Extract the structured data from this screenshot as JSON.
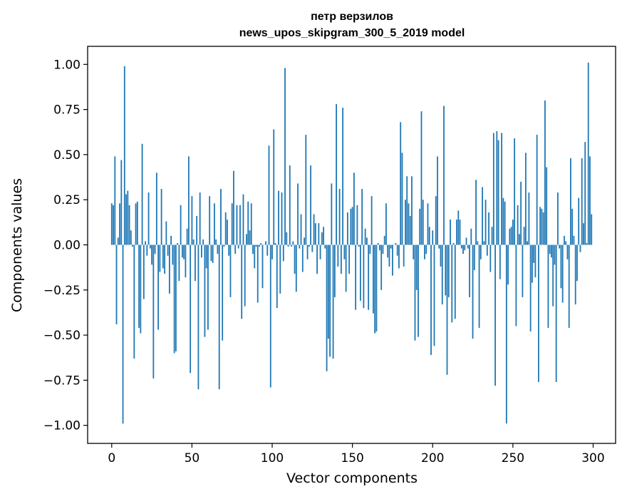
{
  "chart_data": {
    "type": "bar",
    "title": "петр верзилов",
    "subtitle": "news_upos_skipgram_300_5_2019 model",
    "xlabel": "Vector components",
    "ylabel": "Components values",
    "xlim": [
      -15,
      314
    ],
    "ylim": [
      -1.1,
      1.1
    ],
    "xticks": [
      0,
      50,
      100,
      150,
      200,
      250,
      300
    ],
    "xtick_labels": [
      "0",
      "50",
      "100",
      "150",
      "200",
      "250",
      "300"
    ],
    "yticks": [
      1.0,
      0.75,
      0.5,
      0.25,
      0.0,
      -0.25,
      -0.5,
      -0.75,
      -1.0
    ],
    "ytick_labels": [
      "1.00",
      "0.75",
      "0.50",
      "0.25",
      "0.00",
      "−0.25",
      "−0.50",
      "−0.75",
      "−1.00"
    ],
    "grid": false,
    "bar_color": "#1f77b4",
    "x": "indices 0-299",
    "values": [
      0.23,
      0.22,
      0.49,
      -0.44,
      0.04,
      0.23,
      0.47,
      -0.99,
      0.99,
      0.28,
      0.3,
      0.22,
      0.08,
      -0.01,
      -0.63,
      0.23,
      0.24,
      -0.46,
      -0.49,
      0.56,
      -0.3,
      0.02,
      -0.06,
      0.29,
      -0.02,
      -0.11,
      -0.74,
      -0.05,
      0.4,
      -0.47,
      -0.15,
      0.31,
      -0.13,
      -0.16,
      0.13,
      -0.06,
      -0.27,
      0.05,
      -0.11,
      -0.6,
      -0.59,
      0.01,
      -0.2,
      0.22,
      -0.07,
      -0.08,
      -0.18,
      0.09,
      0.49,
      -0.71,
      0.27,
      0.03,
      -0.2,
      0.16,
      -0.8,
      0.29,
      -0.07,
      0.03,
      -0.51,
      -0.13,
      -0.47,
      0.27,
      -0.09,
      -0.1,
      0.23,
      0.03,
      -0.05,
      -0.8,
      0.31,
      -0.53,
      -0.01,
      0.18,
      0.14,
      -0.06,
      -0.29,
      0.23,
      0.41,
      -0.05,
      0.22,
      -0.02,
      0.22,
      -0.41,
      0.28,
      -0.34,
      0.06,
      0.24,
      0.08,
      0.23,
      -0.05,
      -0.13,
      -0.01,
      -0.32,
      -0.01,
      0.01,
      -0.24,
      0.0,
      0.02,
      -0.06,
      0.55,
      -0.79,
      -0.08,
      0.64,
      0.01,
      -0.35,
      0.3,
      -0.27,
      0.29,
      -0.09,
      0.98,
      0.07,
      -0.01,
      0.44,
      -0.01,
      0.02,
      -0.16,
      -0.26,
      0.34,
      -0.02,
      0.17,
      -0.15,
      0.04,
      0.61,
      -0.08,
      -0.01,
      0.44,
      -0.04,
      0.17,
      0.12,
      -0.16,
      0.12,
      -0.08,
      0.07,
      0.1,
      -0.02,
      -0.7,
      -0.52,
      -0.62,
      0.34,
      -0.63,
      -0.29,
      0.78,
      -0.12,
      0.31,
      -0.16,
      0.76,
      -0.08,
      -0.26,
      0.18,
      -0.16,
      0.2,
      0.21,
      0.4,
      -0.36,
      0.22,
      -0.01,
      -0.31,
      0.31,
      -0.35,
      0.09,
      0.04,
      -0.36,
      -0.05,
      0.27,
      -0.38,
      -0.49,
      -0.48,
      0.01,
      -0.03,
      -0.25,
      -0.05,
      0.05,
      0.23,
      -0.07,
      -0.12,
      -0.02,
      -0.17,
      0.0,
      0.01,
      -0.06,
      -0.13,
      0.68,
      0.51,
      -0.12,
      0.25,
      0.38,
      0.23,
      0.16,
      0.38,
      -0.08,
      -0.53,
      -0.25,
      -0.51,
      0.2,
      0.74,
      0.25,
      -0.08,
      -0.05,
      0.23,
      0.1,
      -0.61,
      0.08,
      -0.56,
      0.27,
      0.49,
      -0.02,
      -0.12,
      -0.33,
      0.77,
      -0.28,
      -0.72,
      -0.29,
      0.14,
      -0.43,
      0.01,
      -0.41,
      0.14,
      0.19,
      0.14,
      -0.02,
      -0.05,
      -0.03,
      0.04,
      -0.02,
      -0.29,
      0.09,
      -0.52,
      -0.14,
      0.36,
      0.02,
      -0.46,
      -0.08,
      0.32,
      0.02,
      0.25,
      -0.06,
      0.18,
      -0.15,
      0.1,
      0.62,
      -0.78,
      0.63,
      0.58,
      -0.19,
      0.62,
      0.26,
      0.24,
      -0.99,
      -0.22,
      0.09,
      0.1,
      0.14,
      0.59,
      -0.45,
      0.22,
      0.06,
      0.35,
      -0.29,
      0.1,
      0.51,
      0.02,
      0.29,
      -0.48,
      -0.21,
      -0.1,
      -0.18,
      0.61,
      -0.76,
      0.21,
      0.2,
      0.18,
      0.8,
      0.43,
      -0.46,
      -0.05,
      -0.07,
      -0.34,
      -0.11,
      -0.76,
      0.29,
      -0.02,
      -0.24,
      -0.32,
      0.05,
      0.02,
      -0.08,
      -0.46,
      0.48,
      0.2,
      0.05,
      -0.33,
      -0.2,
      0.26,
      -0.04,
      0.48,
      0.12,
      0.57,
      0.01,
      1.01,
      0.49,
      0.17
    ]
  }
}
